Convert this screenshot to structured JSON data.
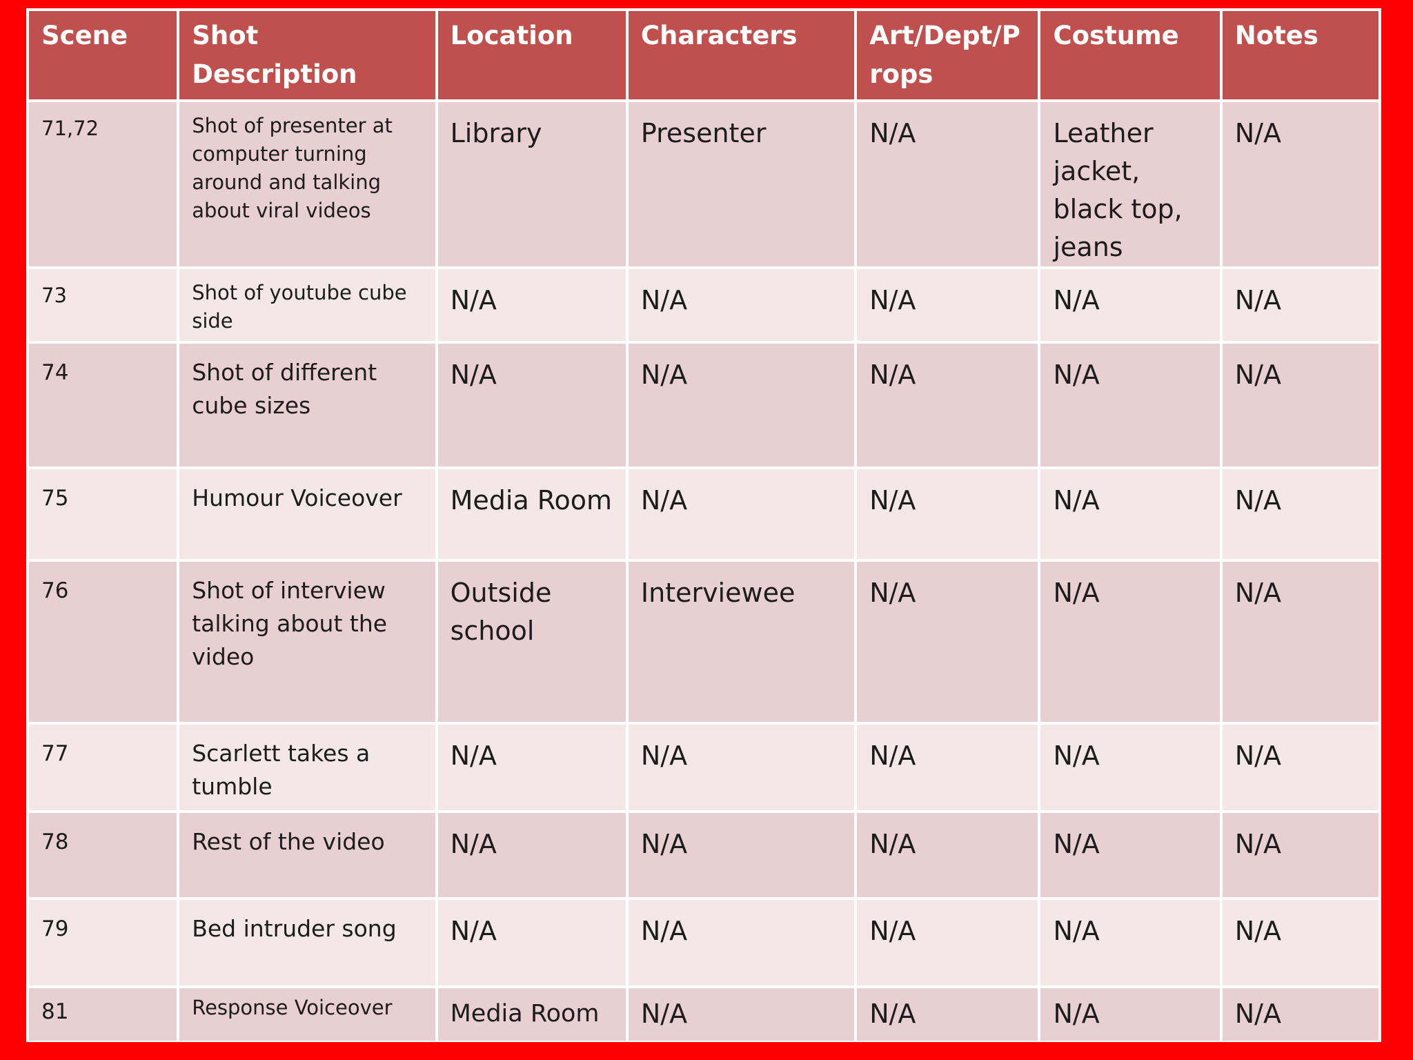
{
  "table": {
    "headers": [
      "Scene",
      "Shot Description",
      "Location",
      "Characters",
      "Art/Dept/P rops",
      "Costume",
      "Notes"
    ],
    "rows": [
      {
        "scene": "71,72",
        "description": "Shot of presenter at computer turning around and talking about viral videos",
        "location": "Library",
        "characters": "Presenter",
        "art": "N/A",
        "costume": "Leather jacket, black top, jeans",
        "notes": "N/A"
      },
      {
        "scene": "73",
        "description": "Shot of youtube cube side",
        "location": "N/A",
        "characters": "N/A",
        "art": "N/A",
        "costume": "N/A",
        "notes": "N/A"
      },
      {
        "scene": "74",
        "description": "Shot of different cube sizes",
        "location": "N/A",
        "characters": "N/A",
        "art": "N/A",
        "costume": "N/A",
        "notes": "N/A"
      },
      {
        "scene": "75",
        "description": "Humour Voiceover",
        "location": "Media Room",
        "characters": "N/A",
        "art": "N/A",
        "costume": "N/A",
        "notes": "N/A"
      },
      {
        "scene": "76",
        "description": "Shot of interview talking about the video",
        "location": "Outside school",
        "characters": "Interviewee",
        "art": "N/A",
        "costume": "N/A",
        "notes": "N/A"
      },
      {
        "scene": "77",
        "description": "Scarlett takes a tumble",
        "location": "N/A",
        "characters": "N/A",
        "art": "N/A",
        "costume": "N/A",
        "notes": "N/A"
      },
      {
        "scene": "78",
        "description": "Rest of the video",
        "location": "N/A",
        "characters": "N/A",
        "art": "N/A",
        "costume": "N/A",
        "notes": "N/A"
      },
      {
        "scene": "79",
        "description": "Bed intruder song",
        "location": "N/A",
        "characters": "N/A",
        "art": "N/A",
        "costume": "N/A",
        "notes": "N/A"
      },
      {
        "scene": "81",
        "description": "Response Voiceover",
        "location": "Media Room",
        "characters": "N/A",
        "art": "N/A",
        "costume": "N/A",
        "notes": "N/A"
      }
    ]
  },
  "colors": {
    "frame": "#ff0000",
    "header": "#c0504d",
    "row_band_dark": "#e8cfd1",
    "row_band_light": "#f3e7e8"
  }
}
